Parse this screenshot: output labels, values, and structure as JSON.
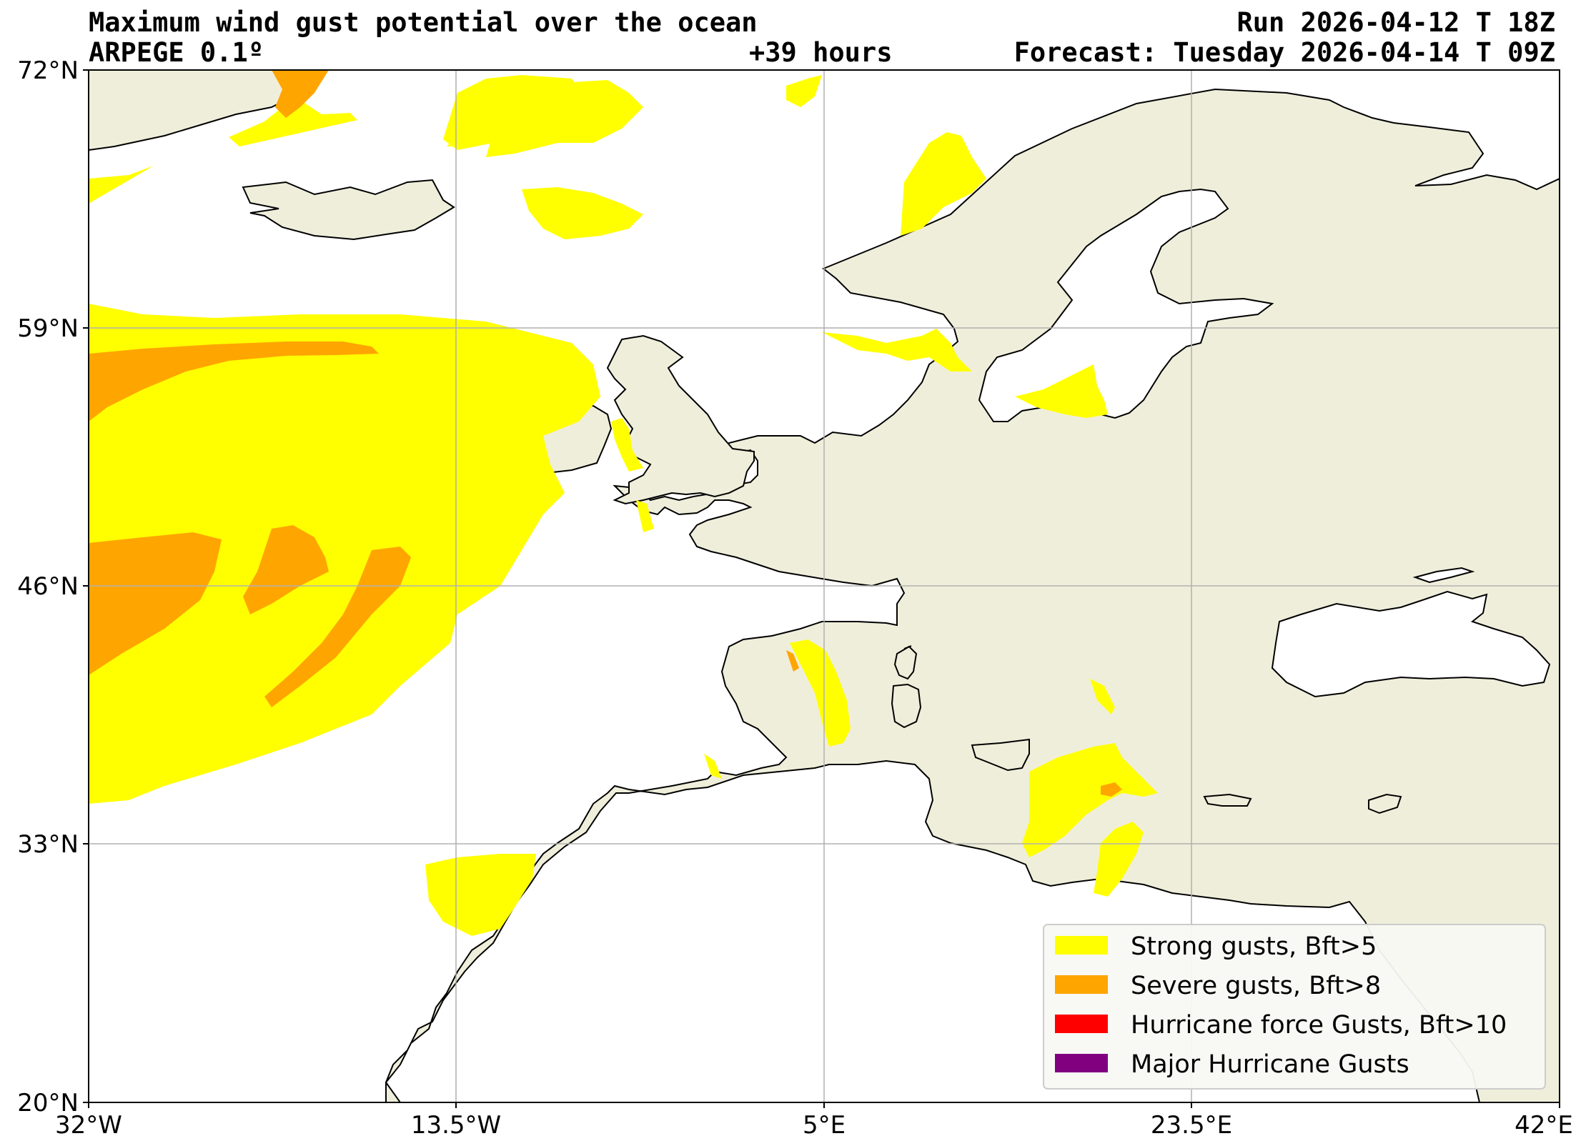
{
  "header": {
    "title": "Maximum wind gust potential over the ocean",
    "model": "ARPEGE 0.1º",
    "lead": "+39 hours",
    "run": "Run 2026-04-12 T 18Z",
    "forecast": "Forecast: Tuesday 2026-04-14 T 09Z"
  },
  "axes": {
    "lat_ticks": [
      "72°N",
      "59°N",
      "46°N",
      "33°N",
      "20°N"
    ],
    "lon_ticks": [
      "32°W",
      "13.5°W",
      "5°E",
      "23.5°E",
      "42°E"
    ]
  },
  "legend": {
    "items": [
      {
        "label": "Strong gusts, Bft>5",
        "color": "#ffff00"
      },
      {
        "label": "Severe gusts, Bft>8",
        "color": "#ffa500"
      },
      {
        "label": "Hurricane force Gusts, Bft>10",
        "color": "#ff0000"
      },
      {
        "label": "Major Hurricane Gusts",
        "color": "#800080"
      }
    ]
  },
  "colors": {
    "land": "#efeedb",
    "ocean": "#ffffff",
    "strong": "#ffff00",
    "severe": "#ffa500",
    "grid": "#b0b0b0"
  }
}
